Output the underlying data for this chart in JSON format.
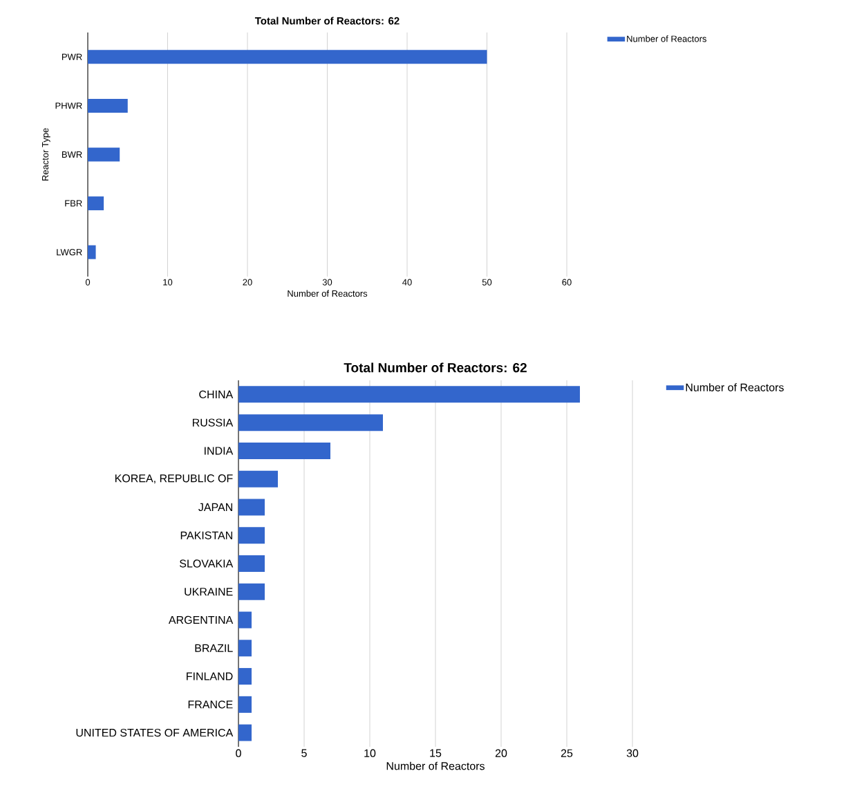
{
  "chart_data": [
    {
      "type": "bar",
      "orientation": "horizontal",
      "title": "Total Number of Reactors: 62",
      "xlabel": "Number of Reactors",
      "ylabel": "Reactor Type",
      "categories": [
        "PWR",
        "PHWR",
        "BWR",
        "FBR",
        "LWGR"
      ],
      "series": [
        {
          "name": "Number of Reactors",
          "color": "#3366cc",
          "values": [
            50,
            5,
            4,
            2,
            1
          ]
        }
      ],
      "xlim": [
        0,
        60
      ],
      "xticks": [
        0,
        10,
        20,
        30,
        40,
        50,
        60
      ],
      "grid": "x",
      "legend": "top right"
    },
    {
      "type": "bar",
      "orientation": "horizontal",
      "title": "Total Number of Reactors: 62",
      "xlabel": "Number of Reactors",
      "categories": [
        "CHINA",
        "RUSSIA",
        "INDIA",
        "KOREA, REPUBLIC OF",
        "JAPAN",
        "PAKISTAN",
        "SLOVAKIA",
        "UKRAINE",
        "ARGENTINA",
        "BRAZIL",
        "FINLAND",
        "FRANCE",
        "UNITED STATES OF AMERICA"
      ],
      "series": [
        {
          "name": "Number of Reactors",
          "color": "#3366cc",
          "values": [
            26,
            11,
            7,
            3,
            2,
            2,
            2,
            2,
            1,
            1,
            1,
            1,
            1
          ]
        }
      ],
      "xlim": [
        0,
        30
      ],
      "xticks": [
        0,
        5,
        10,
        15,
        20,
        25,
        30
      ],
      "grid": "x",
      "legend": "top right"
    }
  ]
}
